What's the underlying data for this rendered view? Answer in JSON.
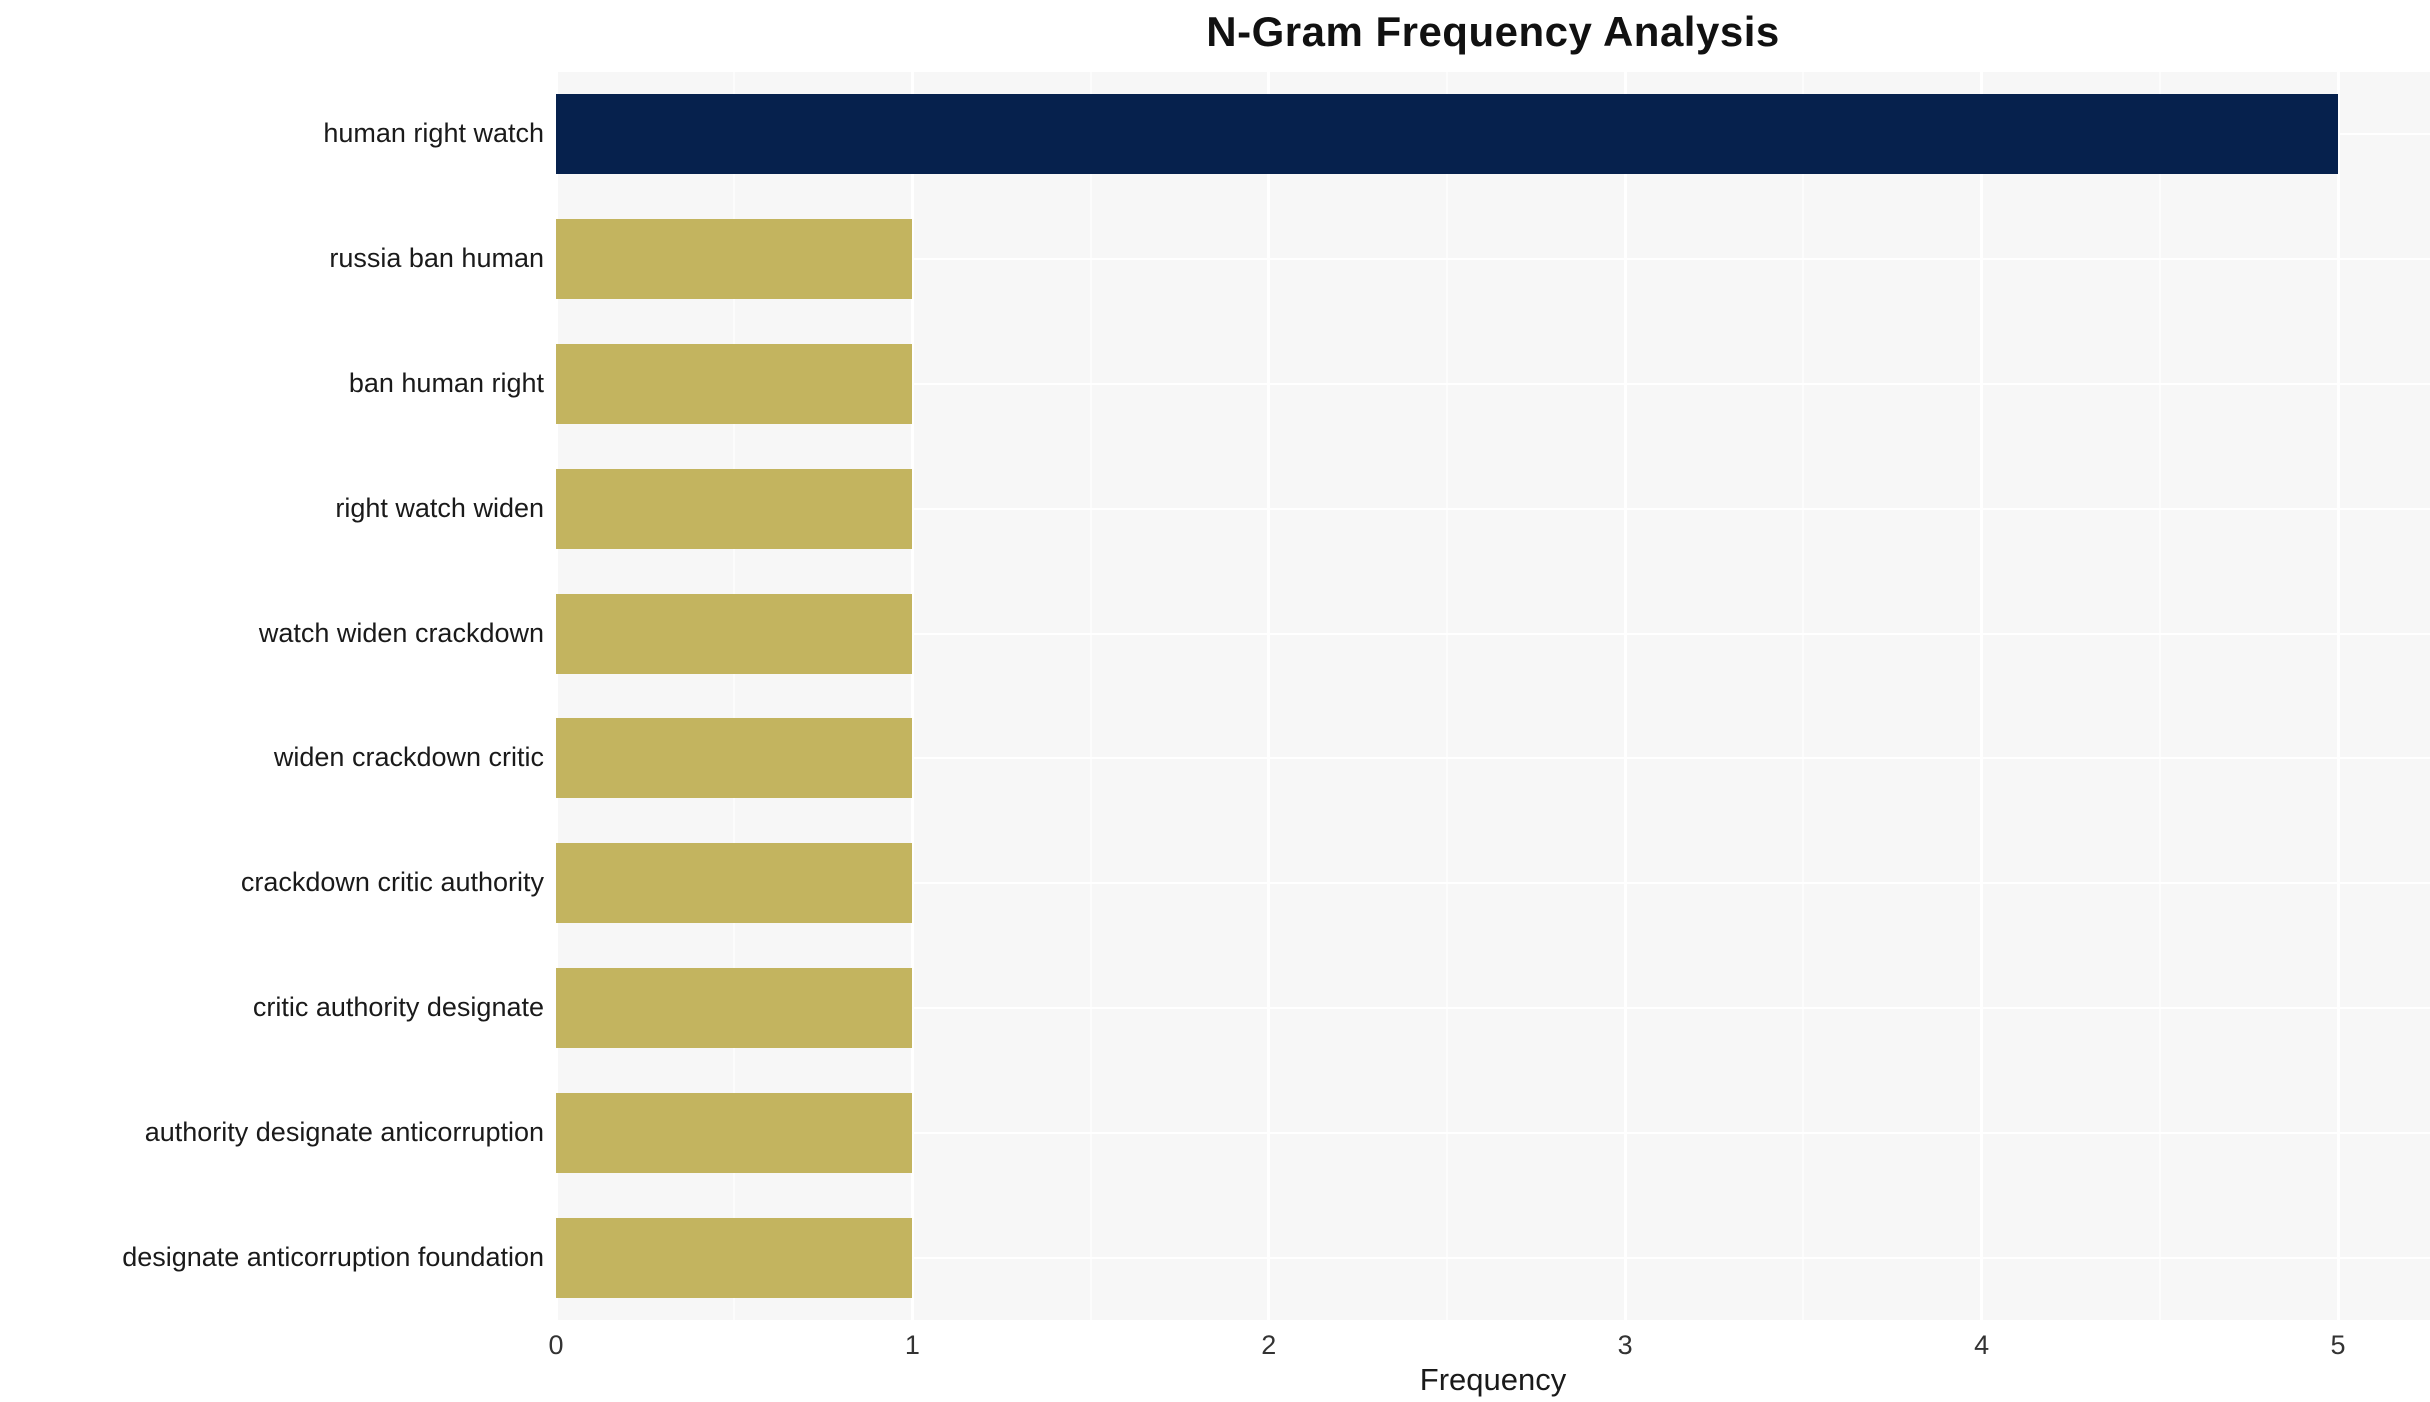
{
  "chart_data": {
    "type": "bar",
    "orientation": "horizontal",
    "title": "N-Gram Frequency Analysis",
    "xlabel": "Frequency",
    "ylabel": "",
    "xlim": [
      0,
      5
    ],
    "x_ticks": [
      0,
      1,
      2,
      3,
      4,
      5
    ],
    "categories": [
      "human right watch",
      "russia ban human",
      "ban human right",
      "right watch widen",
      "watch widen crackdown",
      "widen crackdown critic",
      "crackdown critic authority",
      "critic authority designate",
      "authority designate anticorruption",
      "designate anticorruption foundation"
    ],
    "values": [
      5,
      1,
      1,
      1,
      1,
      1,
      1,
      1,
      1,
      1
    ],
    "bar_colors": [
      "#06214d",
      "#c3b45f",
      "#c3b45f",
      "#c3b45f",
      "#c3b45f",
      "#c3b45f",
      "#c3b45f",
      "#c3b45f",
      "#c3b45f",
      "#c3b45f"
    ],
    "panel_background": "#f7f7f7",
    "gridline_color": "#ffffff",
    "legend": "none",
    "grid": "on"
  }
}
